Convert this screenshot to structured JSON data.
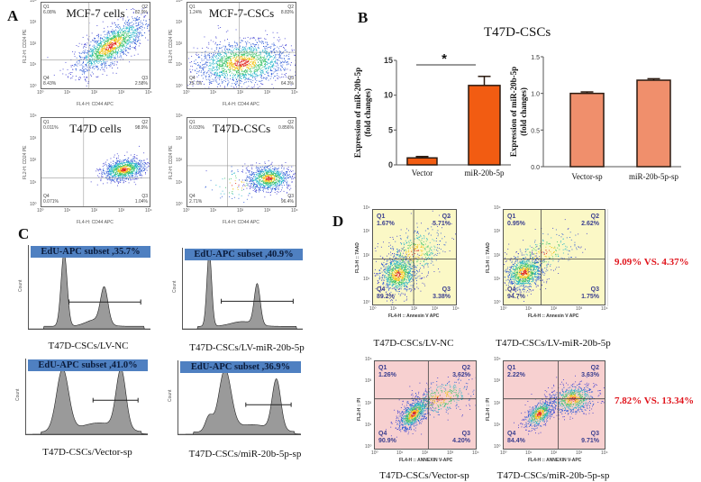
{
  "panels": {
    "a": "A",
    "b": "B",
    "c": "C",
    "d": "D"
  },
  "panel_a": {
    "x_axis_label": "FL4-H: CD44 APC",
    "y_axis_label": "FL2-H: CD24 PE",
    "ticks": [
      "10⁰",
      "10¹",
      "10²",
      "10³",
      "10⁴"
    ],
    "plots": [
      {
        "title": "MCF-7 cells",
        "q": [
          "Q1",
          "Q2",
          "Q3",
          "Q4"
        ],
        "values": [
          "6.08%",
          "82.9%",
          "2.58%",
          "8.43%"
        ]
      },
      {
        "title": "MCF-7-CSCs",
        "q": [
          "Q1",
          "Q2",
          "Q3",
          "Q4"
        ],
        "values": [
          "1.24%",
          "8.83%",
          "64.3%",
          "25.7%"
        ]
      },
      {
        "title": "T47D cells",
        "q": [
          "Q1",
          "Q2",
          "Q3",
          "Q4"
        ],
        "values": [
          "0.011%",
          "98.9%",
          "1.04%",
          "0.071%"
        ]
      },
      {
        "title": "T47D-CSCs",
        "q": [
          "Q1",
          "Q2",
          "Q3",
          "Q4"
        ],
        "values": [
          "0.033%",
          "0.856%",
          "96.4%",
          "2.71%"
        ]
      }
    ]
  },
  "panel_b": {
    "title": "T47D-CSCs"
  },
  "panel_c": {
    "y_axis_label": "Count",
    "plots": [
      {
        "gate_label": "EdU-APC subset ,35.7%",
        "caption": "T47D-CSCs/LV-NC"
      },
      {
        "gate_label": "EdU-APC subset ,40.9%",
        "caption": "T47D-CSCs/LV-miR-20b-5p"
      },
      {
        "gate_label": "EdU-APC subset ,41.0%",
        "caption": "T47D-CSCs/Vector-sp"
      },
      {
        "gate_label": "EdU-APC subset ,36.9%",
        "caption": "T47D-CSCs/miR-20b-5p-sp"
      }
    ]
  },
  "panel_d": {
    "ticks": [
      "10⁰",
      "10¹",
      "10²",
      "10³",
      "10⁴"
    ],
    "plots": [
      {
        "caption": "T47D-CSCs/LV-NC",
        "x_axis_label": "FL4-H :: Annexin V APC",
        "y_axis_label": "FL3-H :: 7AAD",
        "q": [
          "Q1",
          "Q2",
          "Q3",
          "Q4"
        ],
        "values": [
          "1.67%",
          "5.71%",
          "3.38%",
          "89.2%"
        ]
      },
      {
        "caption": "T47D-CSCs/LV-miR-20b-5p",
        "x_axis_label": "FL4-H :: Annexin V APC",
        "y_axis_label": "FL3-H :: 7AAD",
        "q": [
          "Q1",
          "Q2",
          "Q3",
          "Q4"
        ],
        "values": [
          "0.95%",
          "2.62%",
          "1.75%",
          "94.7%"
        ]
      },
      {
        "caption": "T47D-CSCs/Vector-sp",
        "x_axis_label": "FL4-H :: ANNEXIN V-APC",
        "y_axis_label": "FL2-H :: PI",
        "q": [
          "Q1",
          "Q2",
          "Q3",
          "Q4"
        ],
        "values": [
          "1.26%",
          "3.62%",
          "4.20%",
          "90.9%"
        ]
      },
      {
        "caption": "T47D-CSCs/miR-20b-5p-sp",
        "x_axis_label": "FL4-H :: ANNEXIN V-APC",
        "y_axis_label": "FL2-H :: PI",
        "q": [
          "Q1",
          "Q2",
          "Q3",
          "Q4"
        ],
        "values": [
          "2.22%",
          "3.63%",
          "9.71%",
          "84.4%"
        ]
      }
    ],
    "comparisons": [
      "9.09% VS. 4.37%",
      "7.82% VS. 13.34%"
    ],
    "colors": {
      "lentivirus_background": "#fbf8c6",
      "sponge_background": "#f7d0d0",
      "comparison_text": "#e0141c"
    }
  },
  "chart_data": [
    {
      "type": "bar",
      "title": "T47D-CSCs",
      "categories": [
        "Vector",
        "miR-20b-5p"
      ],
      "values": [
        1.0,
        11.4
      ],
      "errors": [
        0.2,
        1.3
      ],
      "ylabel": [
        "Expression of miR-20b-5p",
        "(fold changes)"
      ],
      "ylim": [
        0,
        15
      ],
      "yticks": [
        "0",
        "5",
        "10",
        "15"
      ],
      "annotation": "*",
      "color": "#f25c12"
    },
    {
      "type": "bar",
      "title": "T47D-CSCs",
      "categories": [
        "Vector-sp",
        "miR-20b-5p-sp"
      ],
      "values": [
        1.0,
        1.18
      ],
      "errors": [
        0.02,
        0.02
      ],
      "ylabel": [
        "Expression of miR-20b-5p",
        "(fold changes)"
      ],
      "ylim": [
        0,
        1.5
      ],
      "yticks": [
        "0.0",
        "0.5",
        "1.0",
        "1.5"
      ],
      "color": "#f08f6c"
    }
  ]
}
